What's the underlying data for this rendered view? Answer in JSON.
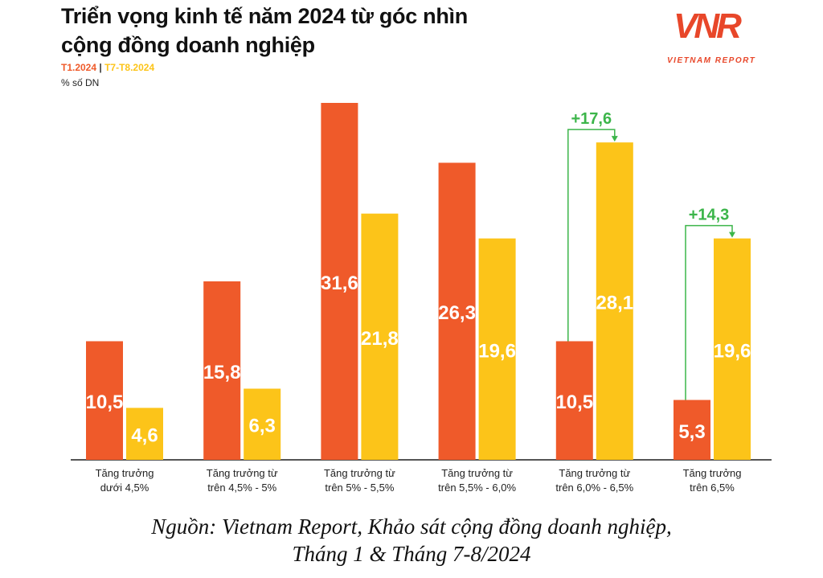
{
  "title_line1": "Triển vọng kinh tế năm 2024 từ góc nhìn",
  "title_line2": "cộng đồng doanh nghiệp",
  "logo": {
    "mark": "VNR",
    "sub": "VIETNAM REPORT"
  },
  "source_line1": "Nguồn: Vietnam Report, Khảo sát cộng đồng doanh nghiệp,",
  "source_line2": "Tháng 1 & Tháng 7-8/2024",
  "chart_data": {
    "type": "bar",
    "title": "Triển vọng kinh tế năm 2024 từ góc nhìn cộng đồng doanh nghiệp",
    "ylabel": "% số DN",
    "ylim": [
      0,
      31.6
    ],
    "grid": false,
    "categories": [
      [
        "Tăng trưởng",
        "dưới 4,5%"
      ],
      [
        "Tăng trưởng từ",
        "trên 4,5% - 5%"
      ],
      [
        "Tăng trưởng từ",
        "trên 5% - 5,5%"
      ],
      [
        "Tăng trưởng từ",
        "trên 5,5% - 6,0%"
      ],
      [
        "Tăng trưởng từ",
        "trên 6,0% - 6,5%"
      ],
      [
        "Tăng trưởng",
        "trên 6,5%"
      ]
    ],
    "series": [
      {
        "name": "T1.2024",
        "color": "#ef5a2a",
        "values": [
          10.5,
          15.8,
          31.6,
          26.3,
          10.5,
          5.3
        ],
        "labels": [
          "10,5",
          "15,8",
          "31,6",
          "26,3",
          "10,5",
          "5,3"
        ]
      },
      {
        "name": "T7-T8.2024",
        "color": "#fcc419",
        "values": [
          4.6,
          6.3,
          21.8,
          19.6,
          28.1,
          19.6
        ],
        "labels": [
          "4,6",
          "6,3",
          "21,8",
          "19,6",
          "28,1",
          "19,6"
        ]
      }
    ],
    "annotations": [
      {
        "category": 4,
        "text": "+17,6"
      },
      {
        "category": 5,
        "text": "+14,3"
      }
    ],
    "annotation_color": "#3cb54a"
  }
}
